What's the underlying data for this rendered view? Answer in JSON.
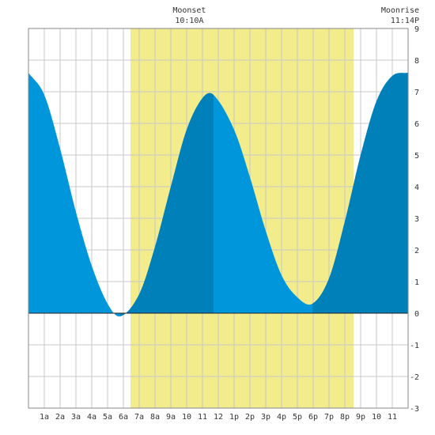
{
  "chart_data": {
    "type": "area",
    "title": "",
    "xlabel": "",
    "ylabel": "",
    "xlim": [
      0,
      24
    ],
    "ylim": [
      -3,
      9
    ],
    "grid": true,
    "x_ticks": [
      "1a",
      "2a",
      "3a",
      "4a",
      "5a",
      "6a",
      "7a",
      "8a",
      "9a",
      "10",
      "11",
      "12",
      "1p",
      "2p",
      "3p",
      "4p",
      "5p",
      "6p",
      "7p",
      "8p",
      "9p",
      "10",
      "11"
    ],
    "y_ticks": [
      -3,
      -2,
      -1,
      0,
      1,
      2,
      3,
      4,
      5,
      6,
      7,
      8,
      9
    ],
    "daylight_hours": [
      6.45,
      20.55
    ],
    "rising_spans": [
      [
        5.8,
        11.7
      ],
      [
        17.95,
        24
      ]
    ],
    "annotations": [
      {
        "label": "Moonset",
        "time": "10:10A",
        "hour": 10.17
      },
      {
        "label": "Moonrise",
        "time": "11:14P",
        "hour": 23.23
      }
    ],
    "series": [
      {
        "values_unit": "ft",
        "hours": [
          0,
          1,
          2,
          3,
          4,
          5,
          5.8,
          7,
          8,
          9,
          10,
          11,
          11.7,
          13,
          14,
          15,
          16,
          17,
          17.95,
          19,
          20,
          21,
          22,
          23,
          24
        ],
        "values": [
          7.6,
          6.9,
          5.2,
          3.2,
          1.5,
          0.3,
          -0.1,
          0.6,
          2.1,
          4.0,
          5.8,
          6.8,
          6.9,
          5.8,
          4.3,
          2.6,
          1.2,
          0.5,
          0.3,
          1.1,
          2.9,
          5.0,
          6.7,
          7.5,
          7.6
        ]
      }
    ],
    "colors": {
      "tide": "#0096dc",
      "tide_rising": "#0080b8",
      "daylight": "#f2ec8c",
      "grid": "#c8c8c8",
      "axis": "#888888"
    }
  }
}
